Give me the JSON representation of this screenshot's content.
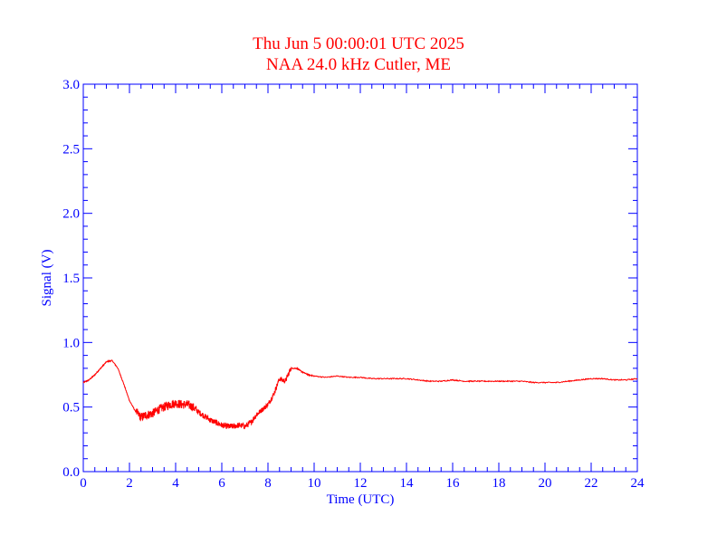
{
  "colors": {
    "axis": "#0000ff",
    "title": "#ff0000",
    "series": "#ff0000",
    "background": "#ffffff"
  },
  "chart_data": {
    "type": "line",
    "title": "Thu Jun 5 00:00:01 UTC 2025",
    "subtitle": "NAA 24.0 kHz Cutler, ME",
    "xlabel": "Time (UTC)",
    "ylabel": "Signal (V)",
    "xlim": [
      0,
      24
    ],
    "ylim": [
      0,
      3.0
    ],
    "xticks": [
      "0",
      "2",
      "4",
      "6",
      "8",
      "10",
      "12",
      "14",
      "16",
      "18",
      "20",
      "22",
      "24"
    ],
    "yticks": [
      "0.0",
      "0.5",
      "1.0",
      "1.5",
      "2.0",
      "2.5",
      "3.0"
    ],
    "grid": false,
    "legend": "none",
    "series": [
      {
        "x": [
          0,
          0.25,
          0.5,
          0.75,
          1.0,
          1.25,
          1.5,
          1.75,
          2.0,
          2.25,
          2.5,
          2.75,
          3.0,
          3.25,
          3.5,
          3.75,
          4.0,
          4.25,
          4.5,
          4.75,
          5.0,
          5.25,
          5.5,
          5.75,
          6.0,
          6.25,
          6.5,
          6.75,
          7.0,
          7.25,
          7.5,
          7.75,
          8.0,
          8.25,
          8.5,
          8.75,
          9.0,
          9.25,
          9.5,
          9.75,
          10,
          10.5,
          11,
          11.5,
          12,
          12.5,
          13,
          13.5,
          14,
          14.5,
          15,
          15.5,
          16,
          16.5,
          17,
          17.5,
          18,
          18.5,
          19,
          19.5,
          20,
          20.5,
          21,
          21.5,
          22,
          22.5,
          23,
          23.5,
          24
        ],
        "y": [
          0.69,
          0.71,
          0.75,
          0.8,
          0.85,
          0.86,
          0.8,
          0.68,
          0.55,
          0.47,
          0.42,
          0.44,
          0.45,
          0.48,
          0.5,
          0.52,
          0.53,
          0.52,
          0.52,
          0.5,
          0.46,
          0.43,
          0.4,
          0.38,
          0.36,
          0.35,
          0.35,
          0.36,
          0.35,
          0.38,
          0.44,
          0.48,
          0.52,
          0.6,
          0.72,
          0.7,
          0.8,
          0.8,
          0.77,
          0.75,
          0.74,
          0.73,
          0.74,
          0.73,
          0.73,
          0.72,
          0.72,
          0.72,
          0.72,
          0.71,
          0.7,
          0.7,
          0.71,
          0.7,
          0.7,
          0.7,
          0.7,
          0.7,
          0.7,
          0.69,
          0.69,
          0.69,
          0.7,
          0.71,
          0.72,
          0.72,
          0.71,
          0.71,
          0.72
        ]
      }
    ]
  }
}
